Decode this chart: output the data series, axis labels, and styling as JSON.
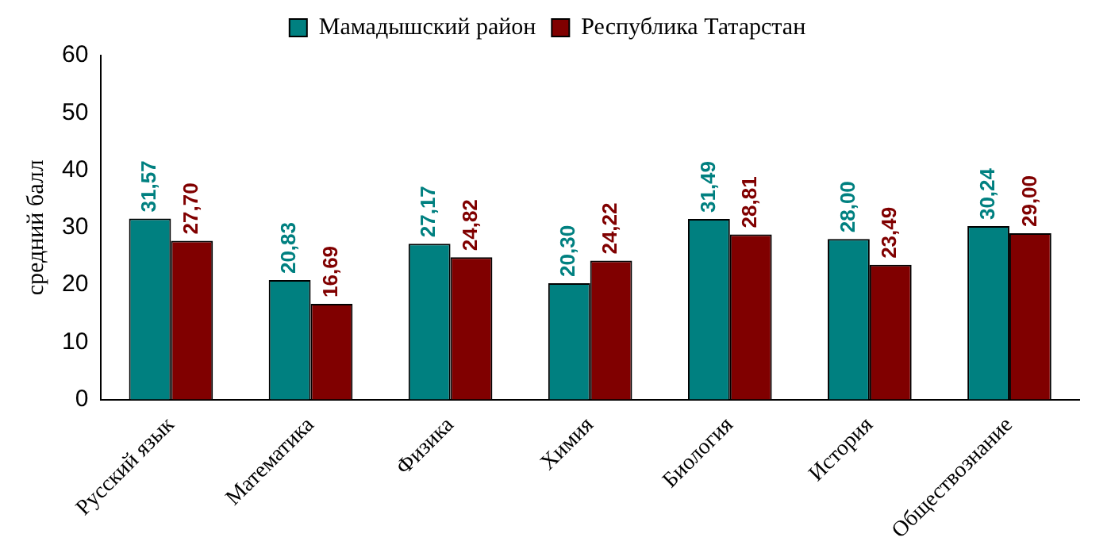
{
  "chart_data": {
    "type": "bar",
    "ylabel": "средний балл",
    "categories": [
      "Русский язык",
      "Математика",
      "Физика",
      "Химия",
      "Биология",
      "История",
      "Обществознание"
    ],
    "series": [
      {
        "name": "Мамадышский район",
        "color": "#008080",
        "values": [
          31.57,
          20.83,
          27.17,
          20.3,
          31.49,
          28.0,
          30.24
        ],
        "value_labels": [
          "31,57",
          "20,83",
          "27,17",
          "20,30",
          "31,49",
          "28,00",
          "30,24"
        ]
      },
      {
        "name": "Республика Татарстан",
        "color": "#800000",
        "values": [
          27.7,
          16.69,
          24.82,
          24.22,
          28.81,
          23.49,
          29.0
        ],
        "value_labels": [
          "27,70",
          "16,69",
          "24,82",
          "24,22",
          "28,81",
          "23,49",
          "29,00"
        ]
      }
    ],
    "ylim": [
      0,
      60
    ],
    "yticks": [
      0,
      10,
      20,
      30,
      40,
      50,
      60
    ],
    "grid": false,
    "legend": "top"
  }
}
